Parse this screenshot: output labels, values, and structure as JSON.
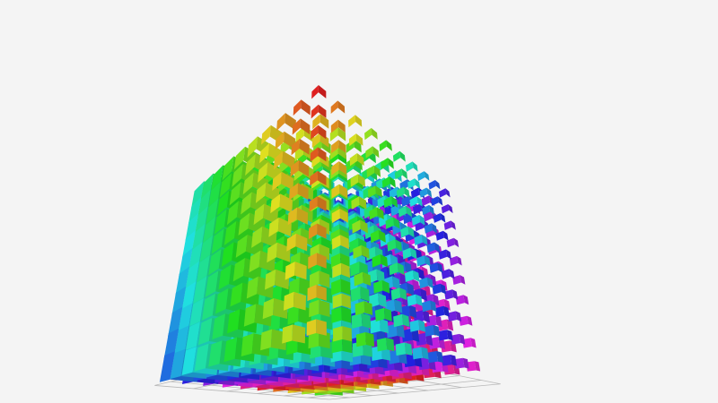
{
  "scene": {
    "background_color": "#f4f4f4",
    "grid_color": "#b8b8b8",
    "object_type": "cube-voxel-grid",
    "color_mode": "rainbow-hue-gradient"
  }
}
